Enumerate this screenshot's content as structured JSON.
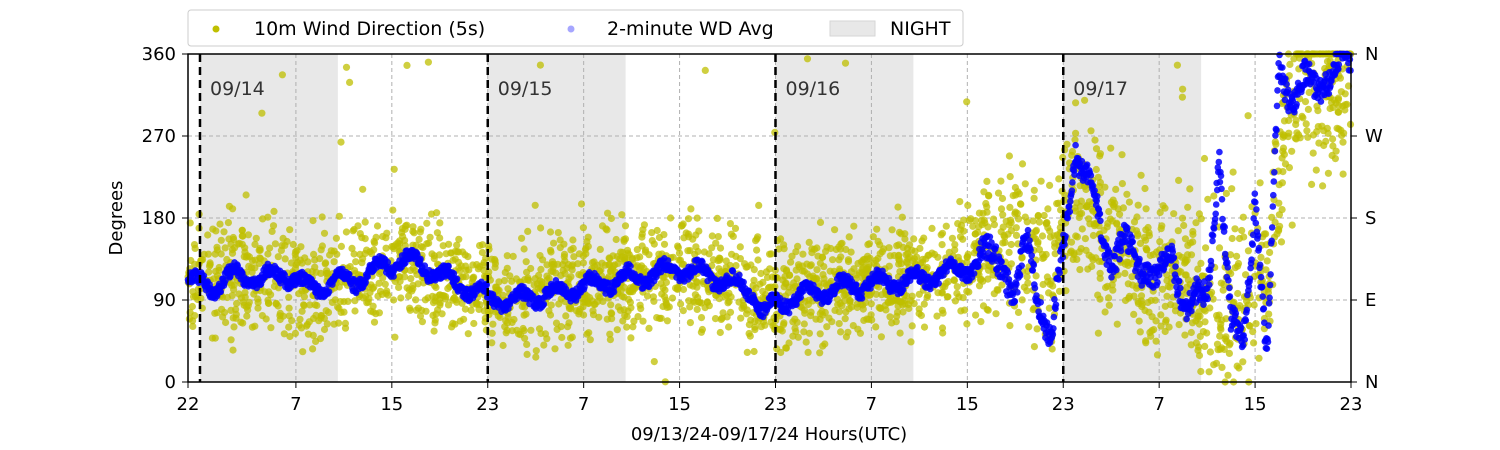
{
  "chart_data": {
    "type": "scatter",
    "title": "",
    "xlabel": "09/13/24-09/17/24  Hours(UTC)",
    "ylabel": "Degrees",
    "ylim": [
      0,
      360
    ],
    "xlim_hours": [
      0,
      97
    ],
    "x_ticks": [
      {
        "hour": 0,
        "label": "22"
      },
      {
        "hour": 9,
        "label": "7"
      },
      {
        "hour": 17,
        "label": "15"
      },
      {
        "hour": 25,
        "label": "23"
      },
      {
        "hour": 33,
        "label": "7"
      },
      {
        "hour": 41,
        "label": "15"
      },
      {
        "hour": 49,
        "label": "23"
      },
      {
        "hour": 57,
        "label": "7"
      },
      {
        "hour": 65,
        "label": "15"
      },
      {
        "hour": 73,
        "label": "23"
      },
      {
        "hour": 81,
        "label": "7"
      },
      {
        "hour": 89,
        "label": "15"
      },
      {
        "hour": 97,
        "label": "23"
      }
    ],
    "y_ticks": [
      0,
      90,
      180,
      270,
      360
    ],
    "y2_ticks": [
      {
        "value": 0,
        "label": "N"
      },
      {
        "value": 90,
        "label": "E"
      },
      {
        "value": 180,
        "label": "S"
      },
      {
        "value": 270,
        "label": "W"
      },
      {
        "value": 360,
        "label": "N"
      }
    ],
    "grid": true,
    "legend_position": "top-center",
    "legend": {
      "wd5s": "10m Wind Direction (5s)",
      "wd2m": "2-minute WD Avg",
      "night": "NIGHT"
    },
    "day_boundaries": [
      {
        "hour": 1,
        "label": "09/14"
      },
      {
        "hour": 25,
        "label": "09/15"
      },
      {
        "hour": 49,
        "label": "09/16"
      },
      {
        "hour": 73,
        "label": "09/17"
      }
    ],
    "night_periods": [
      [
        1,
        12.5
      ],
      [
        25,
        36.5
      ],
      [
        49,
        60.5
      ],
      [
        73,
        84.5
      ]
    ],
    "series_colors": {
      "wd5s": "#bfbf00",
      "wd2m": "#0000ff",
      "night": "#e8e8e8"
    },
    "series": [
      {
        "name": "2-minute WD Avg",
        "x": [
          0,
          2,
          4,
          6,
          8,
          10,
          12,
          14,
          16,
          18,
          20,
          22,
          24,
          25,
          27,
          29,
          31,
          33,
          35,
          37,
          39,
          41,
          43,
          45,
          47,
          48,
          49,
          51,
          53,
          55,
          57,
          59,
          61,
          63,
          65,
          67,
          68,
          69,
          70,
          71,
          72,
          73,
          74,
          75,
          76,
          77,
          78,
          79,
          80,
          81,
          82,
          83,
          84,
          85,
          86,
          87,
          88,
          89,
          90,
          91,
          92,
          93,
          94,
          95,
          96,
          97
        ],
        "y": [
          110,
          105,
          118,
          112,
          120,
          102,
          110,
          112,
          125,
          135,
          125,
          110,
          100,
          92,
          88,
          95,
          98,
          105,
          110,
          115,
          118,
          125,
          118,
          110,
          100,
          75,
          85,
          95,
          100,
          105,
          108,
          110,
          112,
          120,
          125,
          135,
          140,
          90,
          150,
          100,
          40,
          140,
          265,
          220,
          170,
          140,
          155,
          120,
          135,
          115,
          130,
          100,
          90,
          80,
          260,
          60,
          30,
          215,
          20,
          340,
          320,
          330,
          315,
          345,
          350,
          340
        ]
      },
      {
        "name": "10m Wind Direction (5s)",
        "x": [
          0,
          2,
          4,
          6,
          8,
          10,
          12,
          14,
          16,
          18,
          20,
          22,
          24,
          26,
          28,
          30,
          32,
          34,
          36,
          38,
          40,
          42,
          44,
          46,
          48,
          50,
          52,
          54,
          56,
          58,
          60,
          62,
          64,
          66,
          68,
          70,
          72,
          74,
          76,
          78,
          80,
          82,
          84,
          86,
          88,
          90,
          92,
          94,
          96
        ],
        "y": [
          120,
          110,
          115,
          115,
          118,
          105,
          110,
          115,
          125,
          130,
          120,
          110,
          100,
          90,
          95,
          100,
          105,
          110,
          115,
          120,
          125,
          118,
          112,
          105,
          90,
          95,
          100,
          105,
          108,
          110,
          115,
          120,
          125,
          140,
          160,
          150,
          130,
          230,
          160,
          140,
          120,
          130,
          95,
          80,
          100,
          120,
          330,
          320,
          330
        ]
      }
    ]
  }
}
